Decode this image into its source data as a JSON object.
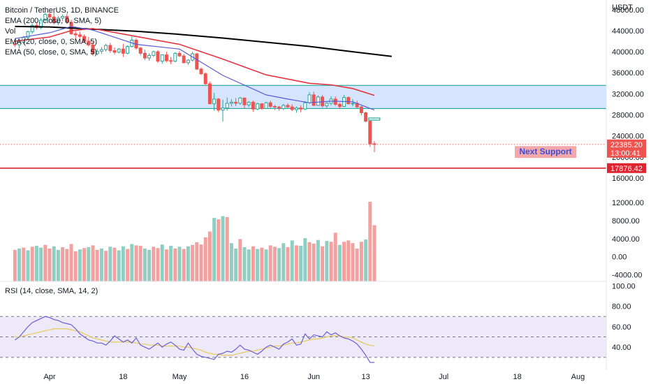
{
  "legend": {
    "symbol": "Bitcoin / TetherUS, 1D, BINANCE",
    "ema200": "EMA (200, close, 0, SMA, 5)",
    "vol": "Vol",
    "ema20": "EMA (20, close, 0, SMA, 5)",
    "ema50": "EMA (50, close, 0, SMA, 5)"
  },
  "rsi_title": "RSI (14, close, SMA, 14, 2)",
  "annotation": "Next Support",
  "colors": {
    "up": "#26a69a",
    "down": "#ef5350",
    "ema200": "#000000",
    "ema50": "#e53340",
    "ema20": "#5b5bd6",
    "zone_fill": "#cfe0ff",
    "zone_line": "#22a89a",
    "support": "#e0242f",
    "rsi": "#6c5fd3",
    "rsi_ma": "#e8c95a"
  },
  "chart_data": [
    {
      "type": "candlestick",
      "name": "price",
      "y_unit": "USDT",
      "ylim": [
        14000,
        48500
      ],
      "y_ticks": [
        "48000.00",
        "44000.00",
        "40000.00",
        "36000.00",
        "32000.00",
        "28000.00",
        "24000.00",
        "20000.00",
        "16000.00"
      ],
      "x_ticks": [
        {
          "label": "Apr",
          "day": 0
        },
        {
          "label": "18",
          "day": 17
        },
        {
          "label": "May",
          "day": 30
        },
        {
          "label": "16",
          "day": 45
        },
        {
          "label": "Jun",
          "day": 61
        },
        {
          "label": "13",
          "day": 73
        },
        {
          "label": "Jul",
          "day": 91
        },
        {
          "label": "18",
          "day": 108
        },
        {
          "label": "Aug",
          "day": 122
        }
      ],
      "first_day": -8,
      "candles": [
        {
          "o": 41500,
          "h": 42200,
          "l": 40900,
          "c": 41300
        },
        {
          "o": 41300,
          "h": 42000,
          "l": 40600,
          "c": 41800
        },
        {
          "o": 41800,
          "h": 43000,
          "l": 41400,
          "c": 42700
        },
        {
          "o": 42700,
          "h": 44000,
          "l": 42300,
          "c": 43800
        },
        {
          "o": 43800,
          "h": 45300,
          "l": 43400,
          "c": 45000
        },
        {
          "o": 45000,
          "h": 45400,
          "l": 44200,
          "c": 44600
        },
        {
          "o": 44600,
          "h": 46400,
          "l": 44300,
          "c": 46000
        },
        {
          "o": 46000,
          "h": 47300,
          "l": 45800,
          "c": 47100
        },
        {
          "o": 47100,
          "h": 48000,
          "l": 46200,
          "c": 46600
        },
        {
          "o": 46600,
          "h": 47500,
          "l": 45200,
          "c": 45500
        },
        {
          "o": 45500,
          "h": 46800,
          "l": 45000,
          "c": 46400
        },
        {
          "o": 46400,
          "h": 47100,
          "l": 45800,
          "c": 46700
        },
        {
          "o": 46700,
          "h": 47200,
          "l": 45300,
          "c": 45600
        },
        {
          "o": 45600,
          "h": 46100,
          "l": 43200,
          "c": 43400
        },
        {
          "o": 43400,
          "h": 43900,
          "l": 42400,
          "c": 43200
        },
        {
          "o": 43200,
          "h": 43800,
          "l": 42600,
          "c": 42900
        },
        {
          "o": 42900,
          "h": 43300,
          "l": 41700,
          "c": 42000
        },
        {
          "o": 42000,
          "h": 42800,
          "l": 41000,
          "c": 41300
        },
        {
          "o": 41300,
          "h": 41900,
          "l": 39200,
          "c": 39600
        },
        {
          "o": 39600,
          "h": 40600,
          "l": 39300,
          "c": 40100
        },
        {
          "o": 40100,
          "h": 40900,
          "l": 39600,
          "c": 40400
        },
        {
          "o": 40400,
          "h": 41500,
          "l": 40000,
          "c": 41200
        },
        {
          "o": 41200,
          "h": 41700,
          "l": 39800,
          "c": 40200
        },
        {
          "o": 40200,
          "h": 40800,
          "l": 39500,
          "c": 39900
        },
        {
          "o": 39900,
          "h": 40700,
          "l": 39700,
          "c": 40500
        },
        {
          "o": 40500,
          "h": 41500,
          "l": 39000,
          "c": 39700
        },
        {
          "o": 39700,
          "h": 41200,
          "l": 39500,
          "c": 41000
        },
        {
          "o": 41000,
          "h": 42900,
          "l": 40800,
          "c": 42200
        },
        {
          "o": 42200,
          "h": 42600,
          "l": 40400,
          "c": 40700
        },
        {
          "o": 40700,
          "h": 40900,
          "l": 39300,
          "c": 39700
        },
        {
          "o": 39700,
          "h": 40400,
          "l": 38400,
          "c": 38800
        },
        {
          "o": 38800,
          "h": 39700,
          "l": 38300,
          "c": 39300
        },
        {
          "o": 39300,
          "h": 40200,
          "l": 39000,
          "c": 40000
        },
        {
          "o": 40000,
          "h": 40300,
          "l": 37900,
          "c": 38200
        },
        {
          "o": 38200,
          "h": 39500,
          "l": 37700,
          "c": 39400
        },
        {
          "o": 39400,
          "h": 40000,
          "l": 38000,
          "c": 38300
        },
        {
          "o": 38300,
          "h": 39000,
          "l": 37600,
          "c": 38200
        },
        {
          "o": 38200,
          "h": 39900,
          "l": 38000,
          "c": 39700
        },
        {
          "o": 39700,
          "h": 40100,
          "l": 39000,
          "c": 39200
        },
        {
          "o": 39200,
          "h": 39600,
          "l": 37800,
          "c": 37900
        },
        {
          "o": 37900,
          "h": 38600,
          "l": 37500,
          "c": 38400
        },
        {
          "o": 38400,
          "h": 40000,
          "l": 38100,
          "c": 39600
        },
        {
          "o": 39600,
          "h": 39800,
          "l": 36500,
          "c": 36700
        },
        {
          "o": 36700,
          "h": 37000,
          "l": 35600,
          "c": 35800
        },
        {
          "o": 35800,
          "h": 36100,
          "l": 33700,
          "c": 33900
        },
        {
          "o": 33900,
          "h": 34300,
          "l": 30200,
          "c": 30100
        },
        {
          "o": 30100,
          "h": 32200,
          "l": 28800,
          "c": 31000
        },
        {
          "o": 31000,
          "h": 31200,
          "l": 28500,
          "c": 28900
        },
        {
          "o": 28900,
          "h": 30900,
          "l": 26700,
          "c": 29300
        },
        {
          "o": 29300,
          "h": 31300,
          "l": 28800,
          "c": 30200
        },
        {
          "o": 30200,
          "h": 31000,
          "l": 29600,
          "c": 30400
        },
        {
          "o": 30400,
          "h": 31200,
          "l": 29700,
          "c": 30200
        },
        {
          "o": 30200,
          "h": 31400,
          "l": 29900,
          "c": 31200
        },
        {
          "o": 31200,
          "h": 31300,
          "l": 29200,
          "c": 29900
        },
        {
          "o": 29900,
          "h": 30600,
          "l": 29500,
          "c": 30400
        },
        {
          "o": 30400,
          "h": 30700,
          "l": 28600,
          "c": 29100
        },
        {
          "o": 29100,
          "h": 30300,
          "l": 28900,
          "c": 30100
        },
        {
          "o": 30100,
          "h": 30200,
          "l": 29000,
          "c": 29200
        },
        {
          "o": 29200,
          "h": 30500,
          "l": 29100,
          "c": 30300
        },
        {
          "o": 30300,
          "h": 30700,
          "l": 29200,
          "c": 29600
        },
        {
          "o": 29600,
          "h": 29900,
          "l": 28900,
          "c": 29500
        },
        {
          "o": 29500,
          "h": 29700,
          "l": 28800,
          "c": 29200
        },
        {
          "o": 29200,
          "h": 30100,
          "l": 28900,
          "c": 29800
        },
        {
          "o": 29800,
          "h": 30200,
          "l": 29300,
          "c": 29500
        },
        {
          "o": 29500,
          "h": 30000,
          "l": 28700,
          "c": 29000
        },
        {
          "o": 29000,
          "h": 29600,
          "l": 28400,
          "c": 29300
        },
        {
          "o": 29300,
          "h": 29800,
          "l": 28500,
          "c": 29100
        },
        {
          "o": 29100,
          "h": 30600,
          "l": 28900,
          "c": 30300
        },
        {
          "o": 30300,
          "h": 32300,
          "l": 30100,
          "c": 31800
        },
        {
          "o": 31800,
          "h": 32400,
          "l": 29700,
          "c": 29800
        },
        {
          "o": 29800,
          "h": 31700,
          "l": 29700,
          "c": 31400
        },
        {
          "o": 31400,
          "h": 31800,
          "l": 29400,
          "c": 29700
        },
        {
          "o": 29700,
          "h": 30400,
          "l": 29300,
          "c": 30200
        },
        {
          "o": 30200,
          "h": 31500,
          "l": 29800,
          "c": 31000
        },
        {
          "o": 31000,
          "h": 31500,
          "l": 29700,
          "c": 30000
        },
        {
          "o": 30000,
          "h": 30300,
          "l": 29200,
          "c": 29600
        },
        {
          "o": 29600,
          "h": 31800,
          "l": 29500,
          "c": 31300
        },
        {
          "o": 31300,
          "h": 31500,
          "l": 30000,
          "c": 30100
        },
        {
          "o": 30100,
          "h": 31000,
          "l": 29600,
          "c": 30200
        },
        {
          "o": 30200,
          "h": 30700,
          "l": 29300,
          "c": 29500
        },
        {
          "o": 29500,
          "h": 29700,
          "l": 27900,
          "c": 28400
        },
        {
          "o": 28400,
          "h": 28600,
          "l": 26600,
          "c": 26800
        },
        {
          "o": 26800,
          "h": 26900,
          "l": 21900,
          "c": 22500
        },
        {
          "o": 22500,
          "h": 23000,
          "l": 20900,
          "c": 22385.2
        }
      ],
      "ema200": [
        [
          -8,
          44800
        ],
        [
          0,
          44700
        ],
        [
          10,
          44300
        ],
        [
          20,
          43900
        ],
        [
          30,
          43300
        ],
        [
          40,
          42600
        ],
        [
          50,
          41800
        ],
        [
          60,
          41000
        ],
        [
          70,
          40000
        ],
        [
          79,
          39100
        ]
      ],
      "ema50": [
        [
          -8,
          42000
        ],
        [
          0,
          42800
        ],
        [
          5,
          44000
        ],
        [
          10,
          44400
        ],
        [
          20,
          42900
        ],
        [
          30,
          41400
        ],
        [
          40,
          38600
        ],
        [
          50,
          35600
        ],
        [
          60,
          34000
        ],
        [
          65,
          33700
        ],
        [
          70,
          33000
        ],
        [
          75,
          31700
        ]
      ],
      "ema20": [
        [
          -8,
          42500
        ],
        [
          0,
          43600
        ],
        [
          5,
          44800
        ],
        [
          10,
          44100
        ],
        [
          20,
          41400
        ],
        [
          30,
          40500
        ],
        [
          40,
          35500
        ],
        [
          50,
          31800
        ],
        [
          55,
          31000
        ],
        [
          60,
          30300
        ],
        [
          65,
          30600
        ],
        [
          70,
          30500
        ],
        [
          75,
          28900
        ]
      ],
      "zone": [
        29200,
        33600
      ],
      "support": 17876.42,
      "current_price": "22385.20",
      "countdown": "13:00:41",
      "support_label": "17876.42",
      "y_axis_title": "USDT"
    },
    {
      "type": "bar",
      "name": "volume",
      "ylim": [
        -5500,
        12500
      ],
      "y_ticks": [
        "12000.00",
        "8000.00",
        "4000.00",
        "0.00",
        "-4000.00"
      ],
      "values": [
        [
          1500,
          "down"
        ],
        [
          1800,
          "up"
        ],
        [
          2000,
          "down"
        ],
        [
          1400,
          "up"
        ],
        [
          2200,
          "down"
        ],
        [
          2400,
          "up"
        ],
        [
          2000,
          "up"
        ],
        [
          2600,
          "down"
        ],
        [
          1800,
          "down"
        ],
        [
          2300,
          "up"
        ],
        [
          1500,
          "up"
        ],
        [
          2100,
          "down"
        ],
        [
          1700,
          "down"
        ],
        [
          2800,
          "down"
        ],
        [
          1200,
          "down"
        ],
        [
          1600,
          "up"
        ],
        [
          1900,
          "down"
        ],
        [
          2100,
          "up"
        ],
        [
          2500,
          "down"
        ],
        [
          1500,
          "down"
        ],
        [
          1800,
          "up"
        ],
        [
          1300,
          "down"
        ],
        [
          2200,
          "up"
        ],
        [
          2000,
          "down"
        ],
        [
          1400,
          "up"
        ],
        [
          2300,
          "up"
        ],
        [
          1700,
          "down"
        ],
        [
          2800,
          "up"
        ],
        [
          2500,
          "down"
        ],
        [
          2400,
          "down"
        ],
        [
          1800,
          "up"
        ],
        [
          1500,
          "up"
        ],
        [
          2200,
          "down"
        ],
        [
          1900,
          "down"
        ],
        [
          2700,
          "up"
        ],
        [
          1600,
          "down"
        ],
        [
          2400,
          "up"
        ],
        [
          1800,
          "down"
        ],
        [
          2200,
          "up"
        ],
        [
          1700,
          "down"
        ],
        [
          2300,
          "up"
        ],
        [
          2600,
          "down"
        ],
        [
          3200,
          "down"
        ],
        [
          2700,
          "down"
        ],
        [
          4300,
          "down"
        ],
        [
          5600,
          "down"
        ],
        [
          8600,
          "up"
        ],
        [
          8300,
          "down"
        ],
        [
          9000,
          "up"
        ],
        [
          8800,
          "down"
        ],
        [
          3000,
          "up"
        ],
        [
          1800,
          "up"
        ],
        [
          3900,
          "down"
        ],
        [
          2100,
          "up"
        ],
        [
          1600,
          "up"
        ],
        [
          2300,
          "down"
        ],
        [
          1700,
          "up"
        ],
        [
          2000,
          "down"
        ],
        [
          1600,
          "up"
        ],
        [
          2500,
          "down"
        ],
        [
          2200,
          "down"
        ],
        [
          1900,
          "up"
        ],
        [
          3000,
          "up"
        ],
        [
          2100,
          "down"
        ],
        [
          3600,
          "up"
        ],
        [
          2500,
          "down"
        ],
        [
          2400,
          "up"
        ],
        [
          4100,
          "up"
        ],
        [
          3200,
          "down"
        ],
        [
          2900,
          "down"
        ],
        [
          3700,
          "up"
        ],
        [
          2300,
          "down"
        ],
        [
          3500,
          "up"
        ],
        [
          3300,
          "down"
        ],
        [
          5300,
          "down"
        ],
        [
          2600,
          "up"
        ],
        [
          3300,
          "down"
        ],
        [
          3600,
          "down"
        ],
        [
          3000,
          "down"
        ],
        [
          1800,
          "down"
        ],
        [
          3300,
          "down"
        ],
        [
          3800,
          "up"
        ],
        [
          12200,
          "down"
        ],
        [
          7000,
          "down"
        ]
      ]
    },
    {
      "type": "line",
      "name": "RSI",
      "ylim": [
        21,
        103
      ],
      "y_ticks": [
        "100.00",
        "80.00",
        "60.00",
        "40.00"
      ],
      "bands": [
        30,
        50,
        70
      ],
      "rsi": [
        47,
        50,
        55,
        60,
        64,
        66,
        68,
        70,
        69,
        67,
        66,
        64,
        63,
        62,
        58,
        53,
        50,
        47,
        46,
        44,
        44,
        42,
        46,
        51,
        48,
        45,
        47,
        44,
        49,
        42,
        40,
        38,
        41,
        44,
        40,
        43,
        45,
        42,
        38,
        37,
        44,
        38,
        33,
        31,
        30,
        29,
        28,
        33,
        34,
        36,
        35,
        38,
        42,
        38,
        37,
        35,
        33,
        36,
        40,
        42,
        40,
        38,
        43,
        45,
        48,
        42,
        43,
        53,
        48,
        52,
        51,
        50,
        55,
        52,
        54,
        51,
        49,
        48,
        46,
        43,
        38,
        32,
        25,
        25
      ],
      "rsi_ma": [
        50,
        50,
        51,
        52,
        53,
        54,
        55,
        56,
        57,
        58,
        58,
        58,
        58,
        57,
        56,
        55,
        53,
        51,
        49,
        48,
        47,
        46,
        45,
        45,
        45,
        45,
        45,
        45,
        44,
        43,
        43,
        42,
        42,
        42,
        41,
        41,
        41,
        41,
        41,
        40,
        40,
        39,
        38,
        37,
        35,
        34,
        33,
        33,
        32,
        32,
        32,
        33,
        34,
        35,
        36,
        36,
        37,
        38,
        39,
        40,
        41,
        41,
        42,
        43,
        44,
        44,
        45,
        46,
        47,
        48,
        48,
        49,
        50,
        51,
        51,
        51,
        50,
        50,
        49,
        47,
        45,
        43,
        42,
        41
      ]
    }
  ]
}
